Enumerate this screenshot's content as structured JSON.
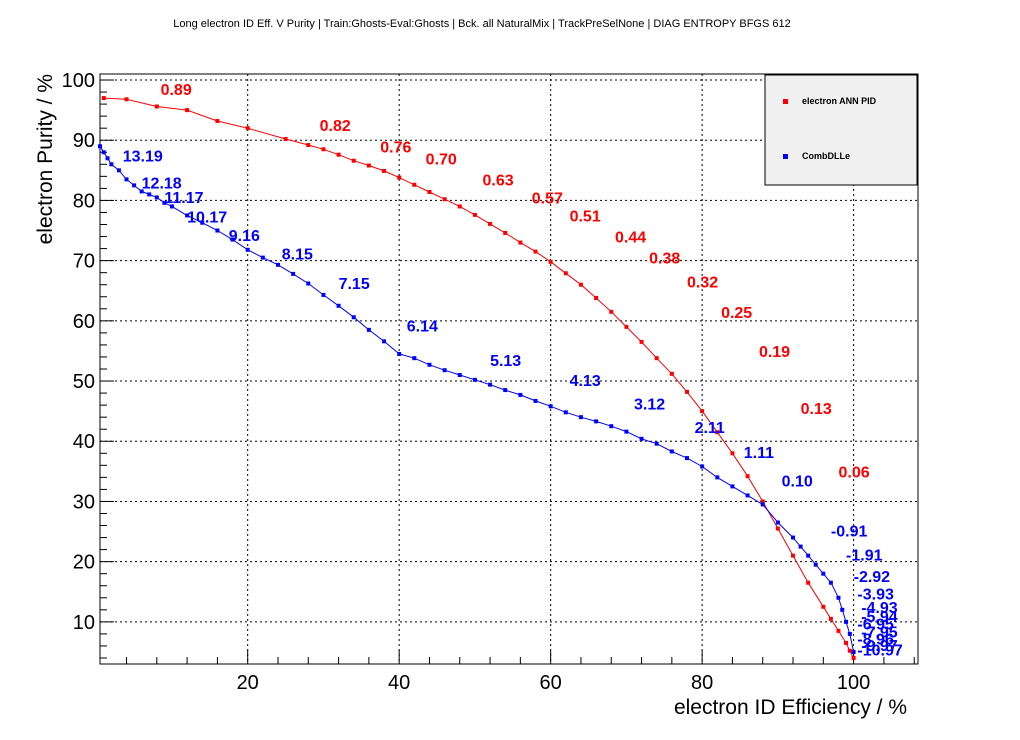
{
  "chart_data": {
    "type": "line",
    "title": "Long electron ID Eff. V Purity | Train:Ghosts-Eval:Ghosts | Bck. all NaturalMix | TrackPreSelNone | DIAG ENTROPY BFGS 612",
    "xlabel": "electron ID Efficiency / %",
    "ylabel": "electron Purity / %",
    "xlim": [
      0.5,
      108.5
    ],
    "ylim": [
      3,
      101
    ],
    "x_ticks": [
      20,
      40,
      60,
      80,
      100
    ],
    "y_ticks": [
      10,
      20,
      30,
      40,
      50,
      60,
      70,
      80,
      90,
      100
    ],
    "grid": true,
    "legend_placement": "top-right",
    "series": [
      {
        "name": "electron ANN PID",
        "color": "#ff0000",
        "x": [
          1,
          4,
          8,
          12,
          16,
          20,
          25,
          28,
          30,
          32,
          34,
          36,
          38,
          40,
          42,
          44,
          46,
          48,
          50,
          52,
          54,
          56,
          58,
          60,
          62,
          64,
          66,
          68,
          70,
          72,
          74,
          76,
          78,
          80,
          82,
          84,
          86,
          88,
          90,
          92,
          94,
          96,
          97,
          98,
          99,
          99.5,
          100
        ],
        "y": [
          97,
          96.8,
          95.6,
          95,
          93.2,
          92,
          90.2,
          89.2,
          88.5,
          87.6,
          86.6,
          85.8,
          84.9,
          83.8,
          82.6,
          81.4,
          80.2,
          79,
          77.6,
          76.1,
          74.6,
          73,
          71.5,
          69.8,
          67.9,
          66,
          63.8,
          61.5,
          59,
          56.5,
          53.8,
          51.2,
          48.2,
          45,
          41.5,
          38,
          34.2,
          30,
          25.5,
          21,
          16.5,
          12.5,
          10.5,
          8.5,
          6.5,
          5.2,
          4
        ],
        "labels": [
          {
            "text": "0.89",
            "x": 8.5,
            "y": 97.5
          },
          {
            "text": "0.82",
            "x": 29.5,
            "y": 91.5
          },
          {
            "text": "0.76",
            "x": 37.5,
            "y": 88
          },
          {
            "text": "0.70",
            "x": 43.5,
            "y": 86
          },
          {
            "text": "0.63",
            "x": 51,
            "y": 82.5
          },
          {
            "text": "0.57",
            "x": 57.5,
            "y": 79.5
          },
          {
            "text": "0.51",
            "x": 62.5,
            "y": 76.5
          },
          {
            "text": "0.44",
            "x": 68.5,
            "y": 73
          },
          {
            "text": "0.38",
            "x": 73,
            "y": 69.5
          },
          {
            "text": "0.32",
            "x": 78,
            "y": 65.5
          },
          {
            "text": "0.25",
            "x": 82.5,
            "y": 60.5
          },
          {
            "text": "0.19",
            "x": 87.5,
            "y": 54
          },
          {
            "text": "0.13",
            "x": 93,
            "y": 44.5
          },
          {
            "text": "0.06",
            "x": 98,
            "y": 34
          }
        ]
      },
      {
        "name": "CombDLLe",
        "color": "#0000ff",
        "x": [
          0.5,
          1,
          1.5,
          2,
          3,
          4,
          5,
          6,
          7,
          8,
          9,
          10,
          12,
          14,
          16,
          18,
          20,
          22,
          24,
          26,
          28,
          30,
          32,
          34,
          36,
          38,
          40,
          42,
          44,
          46,
          48,
          50,
          52,
          54,
          56,
          58,
          60,
          62,
          64,
          66,
          68,
          70,
          72,
          74,
          76,
          78,
          80,
          82,
          84,
          86,
          88,
          90,
          92,
          93,
          94,
          95,
          96,
          97,
          98,
          98.5,
          99,
          99.5,
          100
        ],
        "y": [
          89,
          88,
          87,
          86,
          85,
          83.5,
          82.5,
          81.5,
          81,
          80.5,
          79.6,
          79,
          77.5,
          76.3,
          75,
          73.5,
          71.8,
          70.5,
          69.3,
          67.8,
          66.2,
          64.3,
          62.5,
          60.6,
          58.5,
          56.6,
          54.5,
          53.8,
          52.7,
          51.8,
          51,
          50.2,
          49.4,
          48.5,
          47.7,
          46.7,
          45.8,
          44.8,
          44,
          43.3,
          42.5,
          41.6,
          40.4,
          39.6,
          38.3,
          37.2,
          35.8,
          34,
          32.5,
          31,
          29.5,
          26.5,
          24,
          22.5,
          21,
          19.5,
          18,
          16.5,
          14,
          12,
          10,
          8,
          5
        ],
        "labels": [
          {
            "text": "13.19",
            "x": 3.5,
            "y": 86.5
          },
          {
            "text": "12.18",
            "x": 6,
            "y": 82
          },
          {
            "text": "11.17",
            "x": 9,
            "y": 79.6
          },
          {
            "text": "10.17",
            "x": 12,
            "y": 76.3
          },
          {
            "text": "9.16",
            "x": 17.5,
            "y": 73.3
          },
          {
            "text": "8.15",
            "x": 24.5,
            "y": 70.2
          },
          {
            "text": "7.15",
            "x": 32,
            "y": 65.3
          },
          {
            "text": "6.14",
            "x": 41,
            "y": 58.2
          },
          {
            "text": "5.13",
            "x": 52,
            "y": 52.5
          },
          {
            "text": "4.13",
            "x": 62.5,
            "y": 49.2
          },
          {
            "text": "3.12",
            "x": 71,
            "y": 45.3
          },
          {
            "text": "2.11",
            "x": 79,
            "y": 41.4
          },
          {
            "text": "1.11",
            "x": 85.5,
            "y": 37.2
          },
          {
            "text": "0.10",
            "x": 90.5,
            "y": 32.5
          },
          {
            "text": "-0.91",
            "x": 97,
            "y": 24.2
          },
          {
            "text": "-1.91",
            "x": 99,
            "y": 20.2
          },
          {
            "text": "-2.92",
            "x": 100,
            "y": 16.6
          },
          {
            "text": "-3.93",
            "x": 100.5,
            "y": 13.7
          },
          {
            "text": "-4.93",
            "x": 101,
            "y": 11.5
          },
          {
            "text": "-5.94",
            "x": 101,
            "y": 10
          },
          {
            "text": "-6.95",
            "x": 100.5,
            "y": 8.7
          },
          {
            "text": "-7.95",
            "x": 101,
            "y": 7.4
          },
          {
            "text": "-8.96",
            "x": 100.5,
            "y": 6.2
          },
          {
            "text": "-9.97",
            "x": 101,
            "y": 5.2
          },
          {
            "text": "-10.97",
            "x": 100.5,
            "y": 4.4
          }
        ]
      }
    ]
  }
}
